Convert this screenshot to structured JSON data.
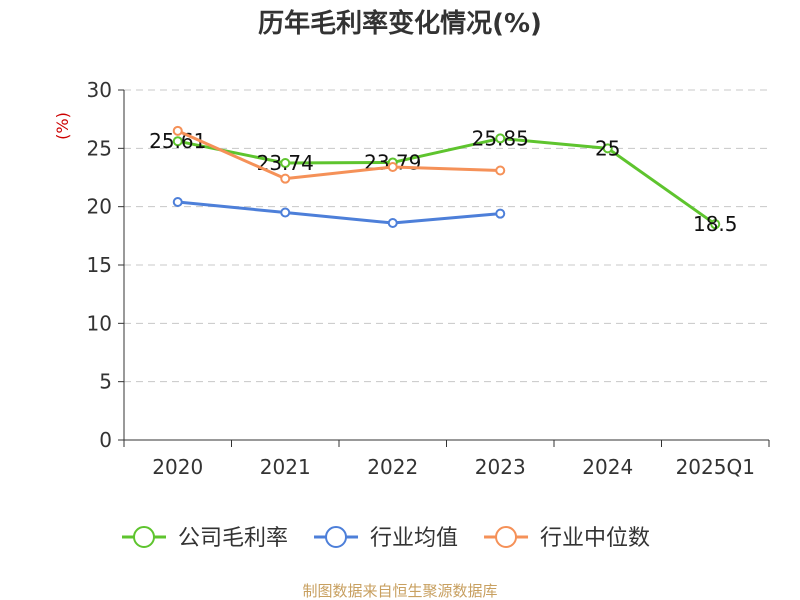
{
  "chart_data": {
    "type": "line",
    "title": "历年毛利率变化情况(%)",
    "ylabel": "(%)",
    "categories": [
      "2020",
      "2021",
      "2022",
      "2023",
      "2024",
      "2025Q1"
    ],
    "ylim": [
      0,
      30
    ],
    "yticks": [
      0,
      5,
      10,
      15,
      20,
      25,
      30
    ],
    "yticks_labels": [
      "0",
      "5",
      "10",
      "15",
      "20",
      "25",
      "30"
    ],
    "grid": true,
    "legend_position": "bottom",
    "series": [
      {
        "name": "公司毛利率",
        "color": "#5ec42e",
        "values": [
          25.61,
          23.74,
          23.79,
          25.85,
          25,
          18.5
        ],
        "labels": [
          "25.61",
          "23.74",
          "23.79",
          "25.85",
          "25",
          "18.5"
        ]
      },
      {
        "name": "行业均值",
        "color": "#4d7fd9",
        "values": [
          20.4,
          19.5,
          18.6,
          19.4,
          null,
          null
        ]
      },
      {
        "name": "行业中位数",
        "color": "#f59158",
        "values": [
          26.5,
          22.4,
          23.4,
          23.1,
          null,
          null
        ]
      }
    ]
  },
  "colors": {
    "axis": "#333333",
    "grid": "#c8c8c8",
    "unit": "#cc0000",
    "source": "#c8a060"
  },
  "footer": {
    "source": "制图数据来自恒生聚源数据库"
  }
}
